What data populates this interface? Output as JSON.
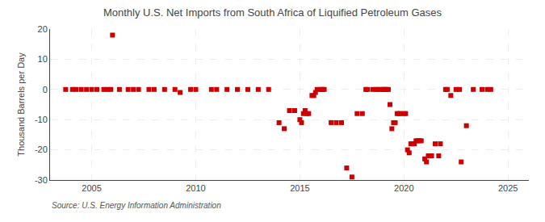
{
  "chart_data": {
    "type": "scatter",
    "title": "Monthly U.S. Net Imports from South Africa of Liquified Petroleum Gases",
    "ylabel": "Thousand Barrels per Day",
    "annotations": [
      "Source: U.S. Energy Information Administration"
    ],
    "color": "#cc0000",
    "marker": "square",
    "grid": true,
    "xlim": [
      2003.0,
      2026.0
    ],
    "ylim": [
      -30,
      20
    ],
    "xticks": [
      2005,
      2010,
      2015,
      2020,
      2025
    ],
    "yticks": [
      -30,
      -20,
      -10,
      0,
      10,
      20
    ],
    "x": [
      2003.75,
      2004.08,
      2004.25,
      2004.5,
      2004.75,
      2005.0,
      2005.25,
      2005.58,
      2005.75,
      2005.92,
      2006.0,
      2006.33,
      2006.75,
      2007.0,
      2007.25,
      2007.75,
      2008.0,
      2008.5,
      2009.0,
      2009.25,
      2009.75,
      2010.0,
      2010.75,
      2011.0,
      2011.5,
      2012.0,
      2012.5,
      2013.0,
      2013.5,
      2014.0,
      2014.25,
      2014.5,
      2014.75,
      2015.0,
      2015.08,
      2015.17,
      2015.25,
      2015.33,
      2015.42,
      2015.58,
      2015.67,
      2015.75,
      2015.83,
      2016.0,
      2016.08,
      2016.17,
      2016.5,
      2016.75,
      2017.0,
      2017.25,
      2017.5,
      2017.75,
      2018.0,
      2018.17,
      2018.25,
      2018.5,
      2018.67,
      2018.75,
      2018.92,
      2019.0,
      2019.08,
      2019.17,
      2019.25,
      2019.33,
      2019.42,
      2019.5,
      2019.58,
      2019.67,
      2019.75,
      2019.83,
      2020.0,
      2020.08,
      2020.17,
      2020.25,
      2020.33,
      2020.42,
      2020.5,
      2020.58,
      2020.67,
      2020.75,
      2020.83,
      2021.0,
      2021.08,
      2021.17,
      2021.25,
      2021.33,
      2021.5,
      2021.67,
      2021.75,
      2022.0,
      2022.08,
      2022.25,
      2022.5,
      2022.67,
      2022.75,
      2023.0,
      2023.33,
      2023.75,
      2024.0,
      2024.17
    ],
    "values": [
      0,
      0,
      0,
      0,
      0,
      0,
      0,
      0,
      0,
      0,
      18,
      0,
      0,
      0,
      0,
      0,
      0,
      0,
      0,
      -1,
      0,
      0,
      0,
      0,
      0,
      0,
      0,
      0,
      0,
      -11,
      -13,
      -7,
      -7,
      -10,
      -11,
      -8,
      -7,
      -8,
      -8,
      -2,
      -2,
      -1,
      0,
      0,
      0,
      0,
      -11,
      -11,
      -11,
      -26,
      -29,
      -8,
      -8,
      0,
      0,
      0,
      0,
      0,
      0,
      0,
      0,
      0,
      0,
      -5,
      -13,
      -11,
      -11,
      -8,
      -8,
      -8,
      -8,
      -8,
      -20,
      -21,
      -18,
      -18,
      -18,
      -17,
      -17,
      -17,
      -17,
      -23,
      -24,
      -22,
      -22,
      -22,
      -18,
      -22,
      -18,
      0,
      0,
      -2,
      0,
      0,
      -24,
      -12,
      0,
      0,
      0,
      0
    ]
  }
}
